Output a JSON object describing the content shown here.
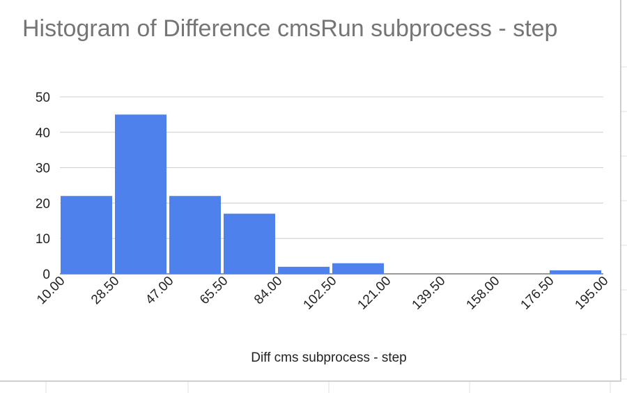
{
  "chart_data": {
    "type": "bar",
    "title": "Histogram of Difference cmsRun subprocess - step",
    "xlabel": "Diff cms subprocess - step",
    "ylabel": "",
    "ylim": [
      0,
      50
    ],
    "yticks": [
      0,
      10,
      20,
      30,
      40,
      50
    ],
    "bin_edges": [
      "10.00",
      "28.50",
      "47.00",
      "65.50",
      "84.00",
      "102.50",
      "121.00",
      "139.50",
      "158.00",
      "176.50",
      "195.00"
    ],
    "values": [
      22,
      45,
      22,
      17,
      2,
      3,
      0,
      0,
      0,
      1
    ],
    "bar_color": "#4f81ec",
    "gridlines": true,
    "legend": "none"
  }
}
